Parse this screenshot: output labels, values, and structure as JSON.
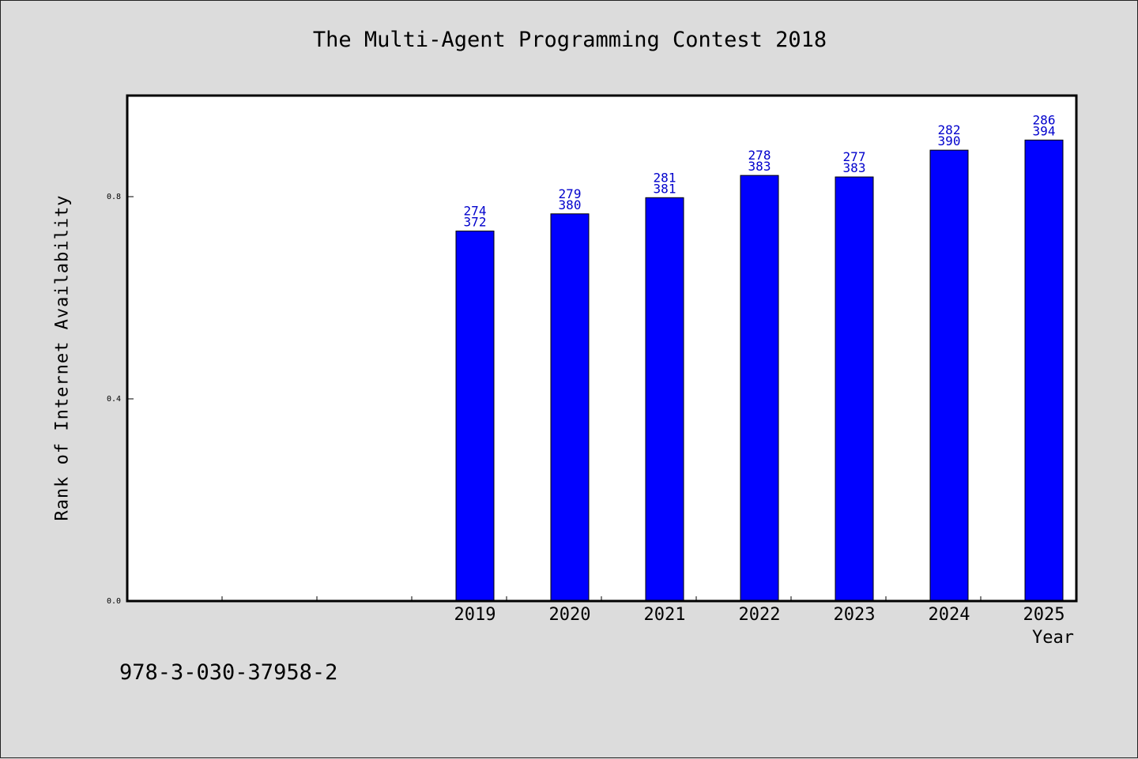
{
  "chart_data": {
    "type": "bar",
    "title": "The Multi-Agent Programming Contest 2018",
    "xlabel": "Year",
    "ylabel": "Rank of Internet Availability",
    "categories": [
      "",
      "",
      "",
      "2019",
      "2020",
      "2021",
      "2022",
      "2023",
      "2024",
      "2025"
    ],
    "values": [
      null,
      null,
      null,
      0.732,
      0.766,
      0.798,
      0.842,
      0.839,
      0.892,
      0.912
    ],
    "data_labels": [
      null,
      null,
      null,
      [
        "274",
        "372"
      ],
      [
        "279",
        "380"
      ],
      [
        "281",
        "381"
      ],
      [
        "278",
        "383"
      ],
      [
        "277",
        "383"
      ],
      [
        "282",
        "390"
      ],
      [
        "286",
        "394"
      ]
    ],
    "ylim": [
      0,
      1.0
    ],
    "yticks": [
      0.0,
      0.4,
      0.8
    ],
    "ytick_labels": [
      "0.0",
      "0.4",
      "0.8"
    ],
    "grid": false,
    "legend": "none",
    "colors": {
      "bar": "#0000ff",
      "bar_edge": "#000000",
      "data_label": "#0000cc",
      "plot_bg": "#ffffff",
      "page_bg": "#dcdcdc"
    }
  },
  "footer": {
    "isbn": "978-3-030-37958-2"
  }
}
